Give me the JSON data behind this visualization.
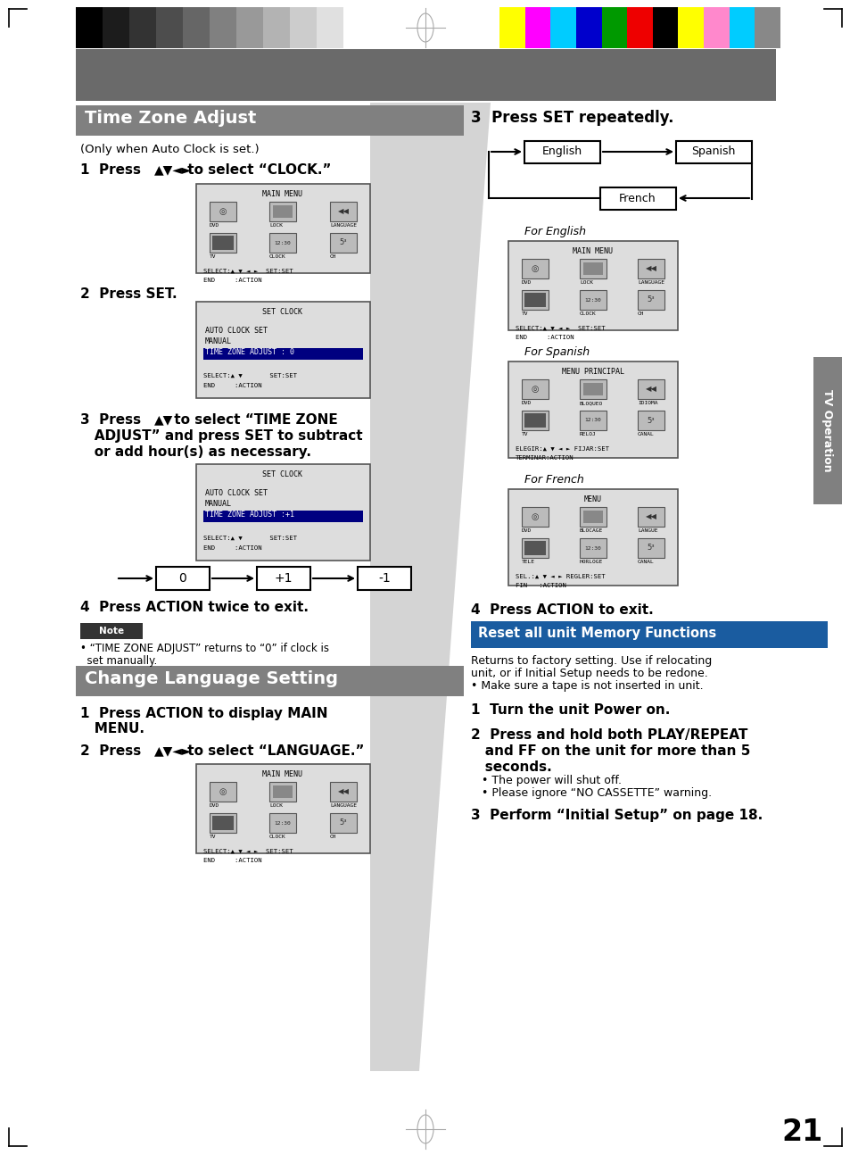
{
  "page_bg": "#ffffff",
  "title_bg": "#808080",
  "title_text": "Time Zone Adjust",
  "title_text_color": "#ffffff",
  "section2_title": "Change Language Setting",
  "section2_title_bg": "#808080",
  "section2_title_color": "#ffffff",
  "reset_title": "Reset all unit Memory Functions",
  "reset_title_bg": "#1a5ca0",
  "reset_title_color": "#ffffff",
  "highlight_bg": "#000080",
  "highlight_text": "#ffffff",
  "tv_op_bg": "#808080",
  "tv_op_text": "#ffffff",
  "page_number": "21",
  "diag_bg": "#d8d8d8",
  "screen_bg": "#e0e0e0",
  "screen_border": "#666666",
  "note_bg": "#333333",
  "grayscale_colors": [
    "#000000",
    "#1c1c1c",
    "#333333",
    "#4d4d4d",
    "#666666",
    "#808080",
    "#999999",
    "#b3b3b3",
    "#cccccc",
    "#e0e0e0",
    "#ffffff"
  ],
  "color_bars": [
    "#ffff00",
    "#ff00ff",
    "#00ccff",
    "#0000cc",
    "#009900",
    "#ee0000",
    "#000000",
    "#ffff00",
    "#ff88cc",
    "#00ccff",
    "#888888"
  ]
}
